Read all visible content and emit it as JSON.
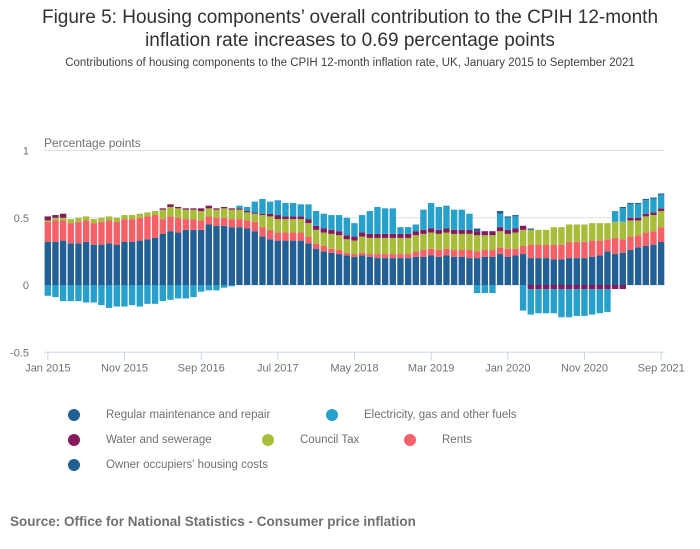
{
  "title_line1": "Figure 5: Housing components’ overall contribution to the CPIH 12-month",
  "title_line2": "inflation rate increases to 0.69 percentage points",
  "subtitle": "Contributions of housing components to the CPIH 12-month inflation rate, UK, January 2015 to September 2021",
  "source": "Source: Office for National Statistics - Consumer price inflation",
  "chart_data": {
    "type": "bar",
    "stacked": true,
    "title": "Figure 5: Housing components’ overall contribution to the CPIH 12-month inflation rate increases to 0.69 percentage points",
    "ylabel": "Percentage points",
    "xlabel": "",
    "ylim": [
      -0.5,
      1
    ],
    "yticks": [
      "1",
      "0.5",
      "0",
      "-0.5"
    ],
    "ytick_values": [
      1,
      0.5,
      0,
      -0.5
    ],
    "xtick_labels": [
      "Jan 2015",
      "Nov 2015",
      "Sep 2016",
      "Jul 2017",
      "May 2018",
      "Mar 2019",
      "Jan 2020",
      "Nov 2020",
      "Sep 2021"
    ],
    "xtick_indices": [
      0,
      10,
      20,
      30,
      40,
      50,
      60,
      70,
      80
    ],
    "grid": "horizontal",
    "legend_position": "bottom",
    "categories_start": "Jan 2015",
    "categories_end": "Sep 2021",
    "series": [
      {
        "name": "Owner occupiers' housing costs",
        "color": "#206095",
        "values": [
          0.32,
          0.32,
          0.33,
          0.31,
          0.31,
          0.32,
          0.3,
          0.3,
          0.31,
          0.3,
          0.32,
          0.32,
          0.33,
          0.34,
          0.35,
          0.38,
          0.4,
          0.39,
          0.41,
          0.41,
          0.41,
          0.45,
          0.44,
          0.44,
          0.43,
          0.43,
          0.42,
          0.4,
          0.36,
          0.34,
          0.33,
          0.33,
          0.33,
          0.33,
          0.31,
          0.27,
          0.25,
          0.24,
          0.23,
          0.22,
          0.21,
          0.22,
          0.21,
          0.2,
          0.2,
          0.2,
          0.2,
          0.2,
          0.21,
          0.21,
          0.22,
          0.21,
          0.22,
          0.21,
          0.21,
          0.2,
          0.2,
          0.21,
          0.21,
          0.23,
          0.21,
          0.22,
          0.23,
          0.2,
          0.2,
          0.2,
          0.19,
          0.19,
          0.2,
          0.2,
          0.2,
          0.21,
          0.22,
          0.25,
          0.23,
          0.24,
          0.26,
          0.28,
          0.29,
          0.3,
          0.32
        ]
      },
      {
        "name": "Rents",
        "color": "#f66068",
        "values": [
          0.15,
          0.16,
          0.15,
          0.15,
          0.16,
          0.16,
          0.16,
          0.17,
          0.17,
          0.17,
          0.17,
          0.17,
          0.17,
          0.17,
          0.17,
          0.11,
          0.11,
          0.11,
          0.08,
          0.08,
          0.07,
          0.06,
          0.06,
          0.06,
          0.06,
          0.06,
          0.06,
          0.07,
          0.07,
          0.07,
          0.06,
          0.06,
          0.06,
          0.06,
          0.05,
          0.04,
          0.04,
          0.03,
          0.03,
          0.02,
          0.02,
          0.02,
          0.02,
          0.03,
          0.03,
          0.03,
          0.03,
          0.03,
          0.04,
          0.05,
          0.05,
          0.05,
          0.05,
          0.05,
          0.05,
          0.06,
          0.05,
          0.05,
          0.05,
          0.05,
          0.06,
          0.05,
          0.06,
          0.1,
          0.1,
          0.1,
          0.11,
          0.11,
          0.12,
          0.12,
          0.12,
          0.12,
          0.11,
          0.09,
          0.12,
          0.1,
          0.1,
          0.09,
          0.1,
          0.1,
          0.11
        ]
      },
      {
        "name": "Council Tax",
        "color": "#a8bd3a",
        "values": [
          0.01,
          0.02,
          0.02,
          0.03,
          0.03,
          0.03,
          0.03,
          0.03,
          0.03,
          0.03,
          0.03,
          0.03,
          0.03,
          0.03,
          0.03,
          0.07,
          0.07,
          0.07,
          0.07,
          0.07,
          0.07,
          0.06,
          0.06,
          0.07,
          0.07,
          0.07,
          0.06,
          0.06,
          0.09,
          0.1,
          0.1,
          0.1,
          0.1,
          0.1,
          0.1,
          0.1,
          0.1,
          0.11,
          0.11,
          0.1,
          0.1,
          0.12,
          0.12,
          0.12,
          0.12,
          0.12,
          0.12,
          0.12,
          0.12,
          0.12,
          0.12,
          0.12,
          0.12,
          0.12,
          0.12,
          0.12,
          0.12,
          0.11,
          0.11,
          0.12,
          0.11,
          0.12,
          0.12,
          0.11,
          0.11,
          0.11,
          0.13,
          0.13,
          0.13,
          0.13,
          0.13,
          0.13,
          0.13,
          0.12,
          0.12,
          0.13,
          0.12,
          0.11,
          0.12,
          0.12,
          0.12
        ]
      },
      {
        "name": "Water and sewerage",
        "color": "#871a5b",
        "values": [
          0.03,
          0.02,
          0.03,
          0.0,
          0.0,
          0.0,
          0.0,
          0.0,
          0.0,
          0.0,
          0.0,
          0.0,
          0.0,
          0.0,
          0.0,
          0.01,
          0.02,
          0.01,
          0.01,
          0.01,
          0.02,
          0.02,
          0.01,
          0.01,
          0.01,
          0.01,
          0.01,
          0.01,
          0.01,
          0.02,
          0.03,
          0.02,
          0.02,
          0.02,
          0.03,
          0.03,
          0.03,
          0.03,
          0.03,
          0.03,
          0.03,
          0.03,
          0.03,
          0.03,
          0.03,
          0.03,
          0.03,
          0.03,
          0.03,
          0.03,
          0.03,
          0.03,
          0.03,
          0.03,
          0.03,
          0.03,
          0.03,
          0.03,
          0.03,
          0.03,
          0.03,
          0.03,
          0.03,
          -0.03,
          -0.03,
          -0.03,
          -0.03,
          -0.03,
          -0.03,
          -0.03,
          -0.03,
          -0.03,
          -0.03,
          -0.03,
          -0.03,
          -0.03,
          0.02,
          0.02,
          0.02,
          0.02,
          0.02
        ]
      },
      {
        "name": "Electricity, gas and other fuels",
        "color": "#27a0cc",
        "values": [
          -0.08,
          -0.09,
          -0.12,
          -0.12,
          -0.12,
          -0.13,
          -0.13,
          -0.15,
          -0.17,
          -0.16,
          -0.16,
          -0.15,
          -0.16,
          -0.14,
          -0.14,
          -0.12,
          -0.11,
          -0.1,
          -0.1,
          -0.09,
          -0.05,
          -0.04,
          -0.04,
          -0.02,
          -0.01,
          0.02,
          0.03,
          0.08,
          0.11,
          0.09,
          0.11,
          0.1,
          0.1,
          0.09,
          0.11,
          0.11,
          0.11,
          0.11,
          0.12,
          0.13,
          0.1,
          0.13,
          0.17,
          0.2,
          0.19,
          0.19,
          0.05,
          0.05,
          0.05,
          0.15,
          0.19,
          0.17,
          0.17,
          0.15,
          0.15,
          0.12,
          -0.06,
          -0.06,
          -0.06,
          0.1,
          0.09,
          0.09,
          -0.19,
          -0.19,
          -0.18,
          -0.18,
          -0.18,
          -0.21,
          -0.21,
          -0.2,
          -0.2,
          -0.19,
          -0.18,
          -0.17,
          0.08,
          0.1,
          0.1,
          0.1,
          0.1,
          0.1,
          0.1
        ]
      },
      {
        "name": "Regular maintenance and repair",
        "color": "#206095",
        "values": [
          0,
          0,
          0,
          0,
          0,
          0,
          0,
          0,
          0,
          0,
          0,
          0,
          0,
          0,
          0,
          0,
          0,
          0,
          0,
          0,
          0,
          0,
          0,
          0,
          0,
          0,
          0,
          0,
          0,
          0,
          0,
          0,
          0,
          0,
          0,
          0,
          0,
          0,
          0,
          0,
          0,
          0,
          0,
          0,
          0,
          0,
          0,
          0,
          0,
          0,
          0,
          0,
          0,
          0,
          0,
          0,
          0.02,
          0,
          0,
          0.02,
          0.01,
          0.01,
          0,
          0.01,
          0,
          0,
          0,
          0,
          0,
          0,
          0,
          0,
          0,
          0,
          0,
          0.01,
          0.01,
          0.01,
          0.01,
          0.01,
          0.01
        ]
      }
    ]
  },
  "legend": [
    {
      "label": "Regular maintenance and repair",
      "color": "#206095"
    },
    {
      "label": "Electricity, gas and other fuels",
      "color": "#27a0cc"
    },
    {
      "label": "Water and sewerage",
      "color": "#871a5b"
    },
    {
      "label": "Council Tax",
      "color": "#a8bd3a"
    },
    {
      "label": "Rents",
      "color": "#f66068"
    },
    {
      "label": "Owner occupiers' housing costs",
      "color": "#206095"
    }
  ]
}
